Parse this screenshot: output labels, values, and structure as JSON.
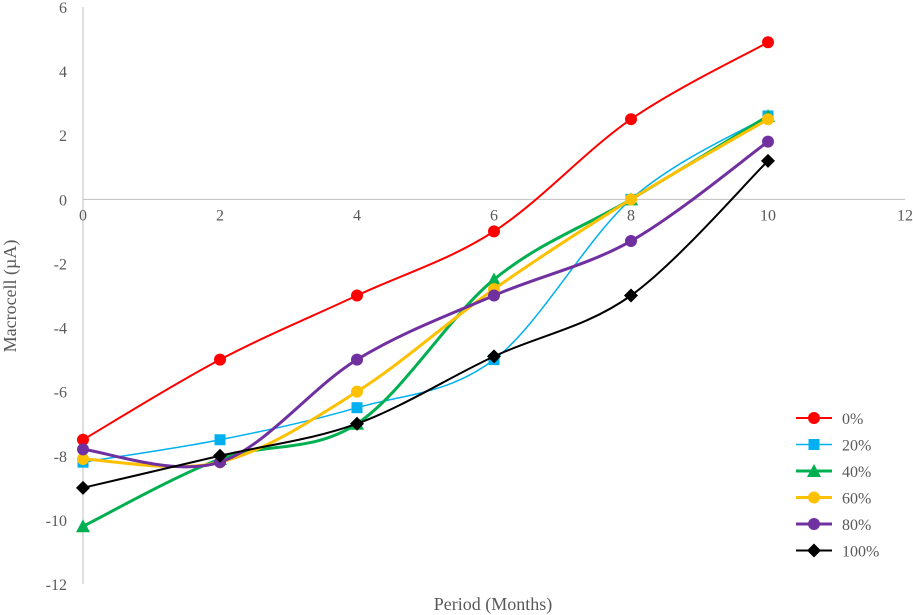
{
  "chart_data": {
    "type": "scatter",
    "title": "",
    "xlabel": "Period (Months)",
    "ylabel": "Macrocell (µA)",
    "xlim": [
      0,
      12
    ],
    "ylim": [
      -12,
      6
    ],
    "xticks": [
      0,
      2,
      4,
      6,
      8,
      10,
      12
    ],
    "yticks": [
      -12,
      -10,
      -8,
      -6,
      -4,
      -2,
      0,
      2,
      4,
      6
    ],
    "grid": false,
    "smooth_lines": true,
    "legend_position": "bottom-right",
    "series": [
      {
        "name": "0%",
        "color": "#ff0000",
        "marker": "circle",
        "line_width": 2,
        "x": [
          0,
          2,
          4,
          6,
          8,
          10
        ],
        "y": [
          -7.5,
          -5,
          -3,
          -1,
          2.5,
          4.9
        ]
      },
      {
        "name": "20%",
        "color": "#00b0f0",
        "marker": "square",
        "line_width": 1.5,
        "x": [
          0,
          2,
          4,
          6,
          8,
          10
        ],
        "y": [
          -8.2,
          -7.5,
          -6.5,
          -5,
          0,
          2.6
        ]
      },
      {
        "name": "40%",
        "color": "#00b050",
        "marker": "triangle",
        "line_width": 3,
        "x": [
          0,
          2,
          4,
          6,
          8,
          10
        ],
        "y": [
          -10.2,
          -8.1,
          -7,
          -2.5,
          0,
          2.6
        ]
      },
      {
        "name": "60%",
        "color": "#ffc000",
        "marker": "circle",
        "line_width": 3,
        "x": [
          0,
          2,
          4,
          6,
          8,
          10
        ],
        "y": [
          -8.1,
          -8.2,
          -6,
          -2.8,
          0,
          2.5
        ]
      },
      {
        "name": "80%",
        "color": "#7030a0",
        "marker": "circle",
        "line_width": 3,
        "x": [
          0,
          2,
          4,
          6,
          8,
          10
        ],
        "y": [
          -7.8,
          -8.2,
          -5,
          -3,
          -1.3,
          1.8
        ]
      },
      {
        "name": "100%",
        "color": "#000000",
        "marker": "diamond",
        "line_width": 2,
        "x": [
          0,
          2,
          4,
          6,
          8,
          10
        ],
        "y": [
          -9,
          -8,
          -7,
          -4.9,
          -3,
          1.2
        ]
      }
    ]
  }
}
